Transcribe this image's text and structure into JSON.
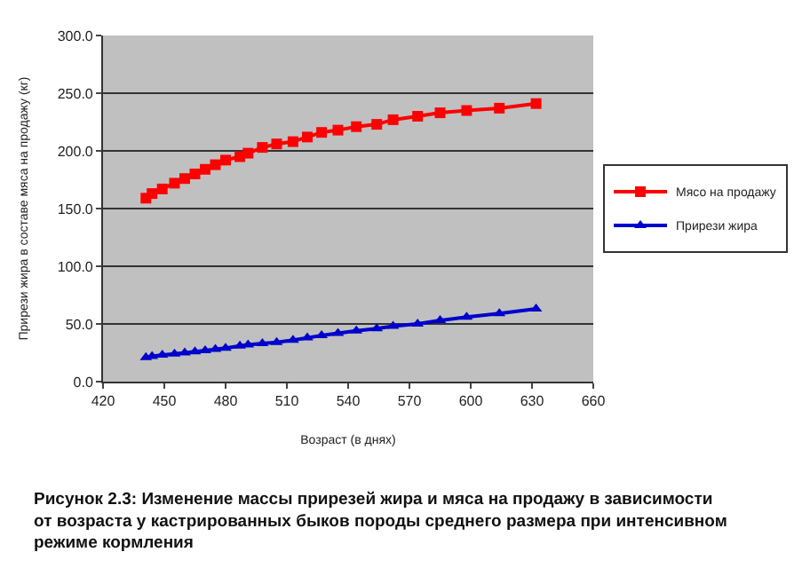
{
  "chart_data": {
    "type": "line",
    "xlabel": "Возраст (в днях)",
    "ylabel": "Прирези жира в составе мяса на продажу (кг)",
    "x": [
      441,
      444,
      449,
      455,
      460,
      465,
      470,
      475,
      480,
      487,
      491,
      498,
      505,
      513,
      520,
      527,
      535,
      544,
      554,
      562,
      574,
      585,
      598,
      614,
      632
    ],
    "series": [
      {
        "name": "Мясо на продажу",
        "color": "#ff0000",
        "marker": "square",
        "values": [
          159,
          163,
          167,
          172,
          176,
          180,
          184,
          188,
          192,
          195,
          198,
          203,
          206,
          208,
          212,
          216,
          218,
          221,
          223,
          227,
          230,
          233,
          235,
          237,
          241
        ]
      },
      {
        "name": "Прирези жира",
        "color": "#0000cc",
        "marker": "triangle",
        "values": [
          21,
          22,
          23,
          24,
          25,
          26,
          27,
          28,
          29,
          31,
          32,
          33,
          34,
          36,
          38,
          40,
          42,
          44,
          46,
          48,
          50,
          53,
          56,
          59,
          63
        ]
      }
    ],
    "xlim": [
      420,
      660
    ],
    "xticks": [
      420,
      450,
      480,
      510,
      540,
      570,
      600,
      630,
      660
    ],
    "ylim": [
      0,
      300
    ],
    "yticks": [
      {
        "value": 0,
        "label": "0.0"
      },
      {
        "value": 50,
        "label": "50.0"
      },
      {
        "value": 100,
        "label": "100.0"
      },
      {
        "value": 150,
        "label": "150.0"
      },
      {
        "value": 200,
        "label": "200.0"
      },
      {
        "value": 250,
        "label": "250.0"
      },
      {
        "value": 300,
        "label": "300.0"
      }
    ],
    "grid": "y",
    "legend": "right",
    "annotations": [
      "Рисунок 2.3: Изменение массы прирезей жира и мяса на продажу в зависимости от возраста у кастрированных быков породы среднего размера при интенсивном режиме кормления"
    ]
  }
}
